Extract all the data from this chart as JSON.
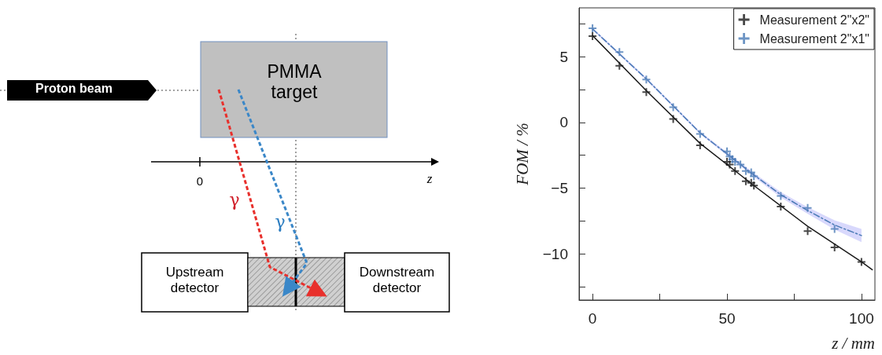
{
  "chart_data": [
    {
      "type": "other",
      "annotations": [
        "Proton beam",
        "PMMA target",
        "0",
        "z",
        "γ",
        "γ",
        "Upstream detector",
        "Downstream detector"
      ]
    },
    {
      "type": "scatter",
      "xlabel": "z / mm",
      "ylabel": "FOM / %",
      "xlim": [
        -5,
        105
      ],
      "ylim": [
        -13.5,
        8.7
      ],
      "xticks": [
        0,
        {
          "value": 25,
          "label": null
        },
        50,
        {
          "value": 75,
          "label": null
        },
        100
      ],
      "yticks": [
        {
          "value": -12.5,
          "label": null
        },
        {
          "value": -10,
          "label": "−10"
        },
        {
          "value": -7.5,
          "label": null
        },
        {
          "value": -5,
          "label": "−5"
        },
        {
          "value": -2.5,
          "label": null
        },
        0,
        {
          "value": 2.5,
          "label": null
        },
        5,
        {
          "value": 7.5,
          "label": null
        }
      ],
      "grid": false,
      "legend": "top right",
      "marker": "cross",
      "series": [
        {
          "name": "Measurement 2\"x2\"",
          "color": "#1a1a1a",
          "x": [
            0,
            10,
            20,
            30,
            40,
            50,
            51,
            53,
            57,
            59,
            60,
            70,
            80,
            90,
            100
          ],
          "values": [
            6.55,
            4.3,
            2.3,
            0.26,
            -1.74,
            -3.0,
            -3.2,
            -3.7,
            -4.47,
            -4.6,
            -4.8,
            -6.4,
            -8.26,
            -9.5,
            -10.6
          ]
        },
        {
          "name": "Measurement 2\"x1\"",
          "color": "#4a7ab5",
          "x": [
            0,
            10,
            20,
            30,
            40,
            50,
            51,
            52,
            53,
            55,
            57,
            59,
            60,
            70,
            80,
            90
          ],
          "values": [
            7.15,
            5.35,
            3.25,
            1.15,
            -0.88,
            -2.2,
            -2.6,
            -2.8,
            -3.0,
            -3.2,
            -3.7,
            -3.8,
            -4.1,
            -5.6,
            -6.5,
            -8.1
          ]
        },
        {
          "type": "line",
          "color": "#1a1a1a",
          "marker": "none",
          "line_style": "solid",
          "x": [
            0,
            20,
            40,
            60,
            80,
            100,
            104
          ],
          "values": [
            6.6,
            2.4,
            -1.6,
            -4.8,
            -7.9,
            -10.6,
            -11.2
          ]
        },
        {
          "type": "line",
          "color": "#4a7ab5",
          "marker": "none",
          "line_style": "dashed",
          "x": [
            0,
            20,
            40,
            60,
            70,
            80,
            90,
            100
          ],
          "values": [
            7.1,
            3.3,
            -0.8,
            -4.0,
            -5.5,
            -6.7,
            -7.8,
            -8.6
          ],
          "lower": [
            7.0,
            3.2,
            -0.9,
            -4.15,
            -5.7,
            -6.95,
            -8.15,
            -9.1
          ],
          "upper": [
            7.2,
            3.4,
            -0.7,
            -3.85,
            -5.3,
            -6.45,
            -7.45,
            -8.1
          ]
        }
      ]
    }
  ]
}
